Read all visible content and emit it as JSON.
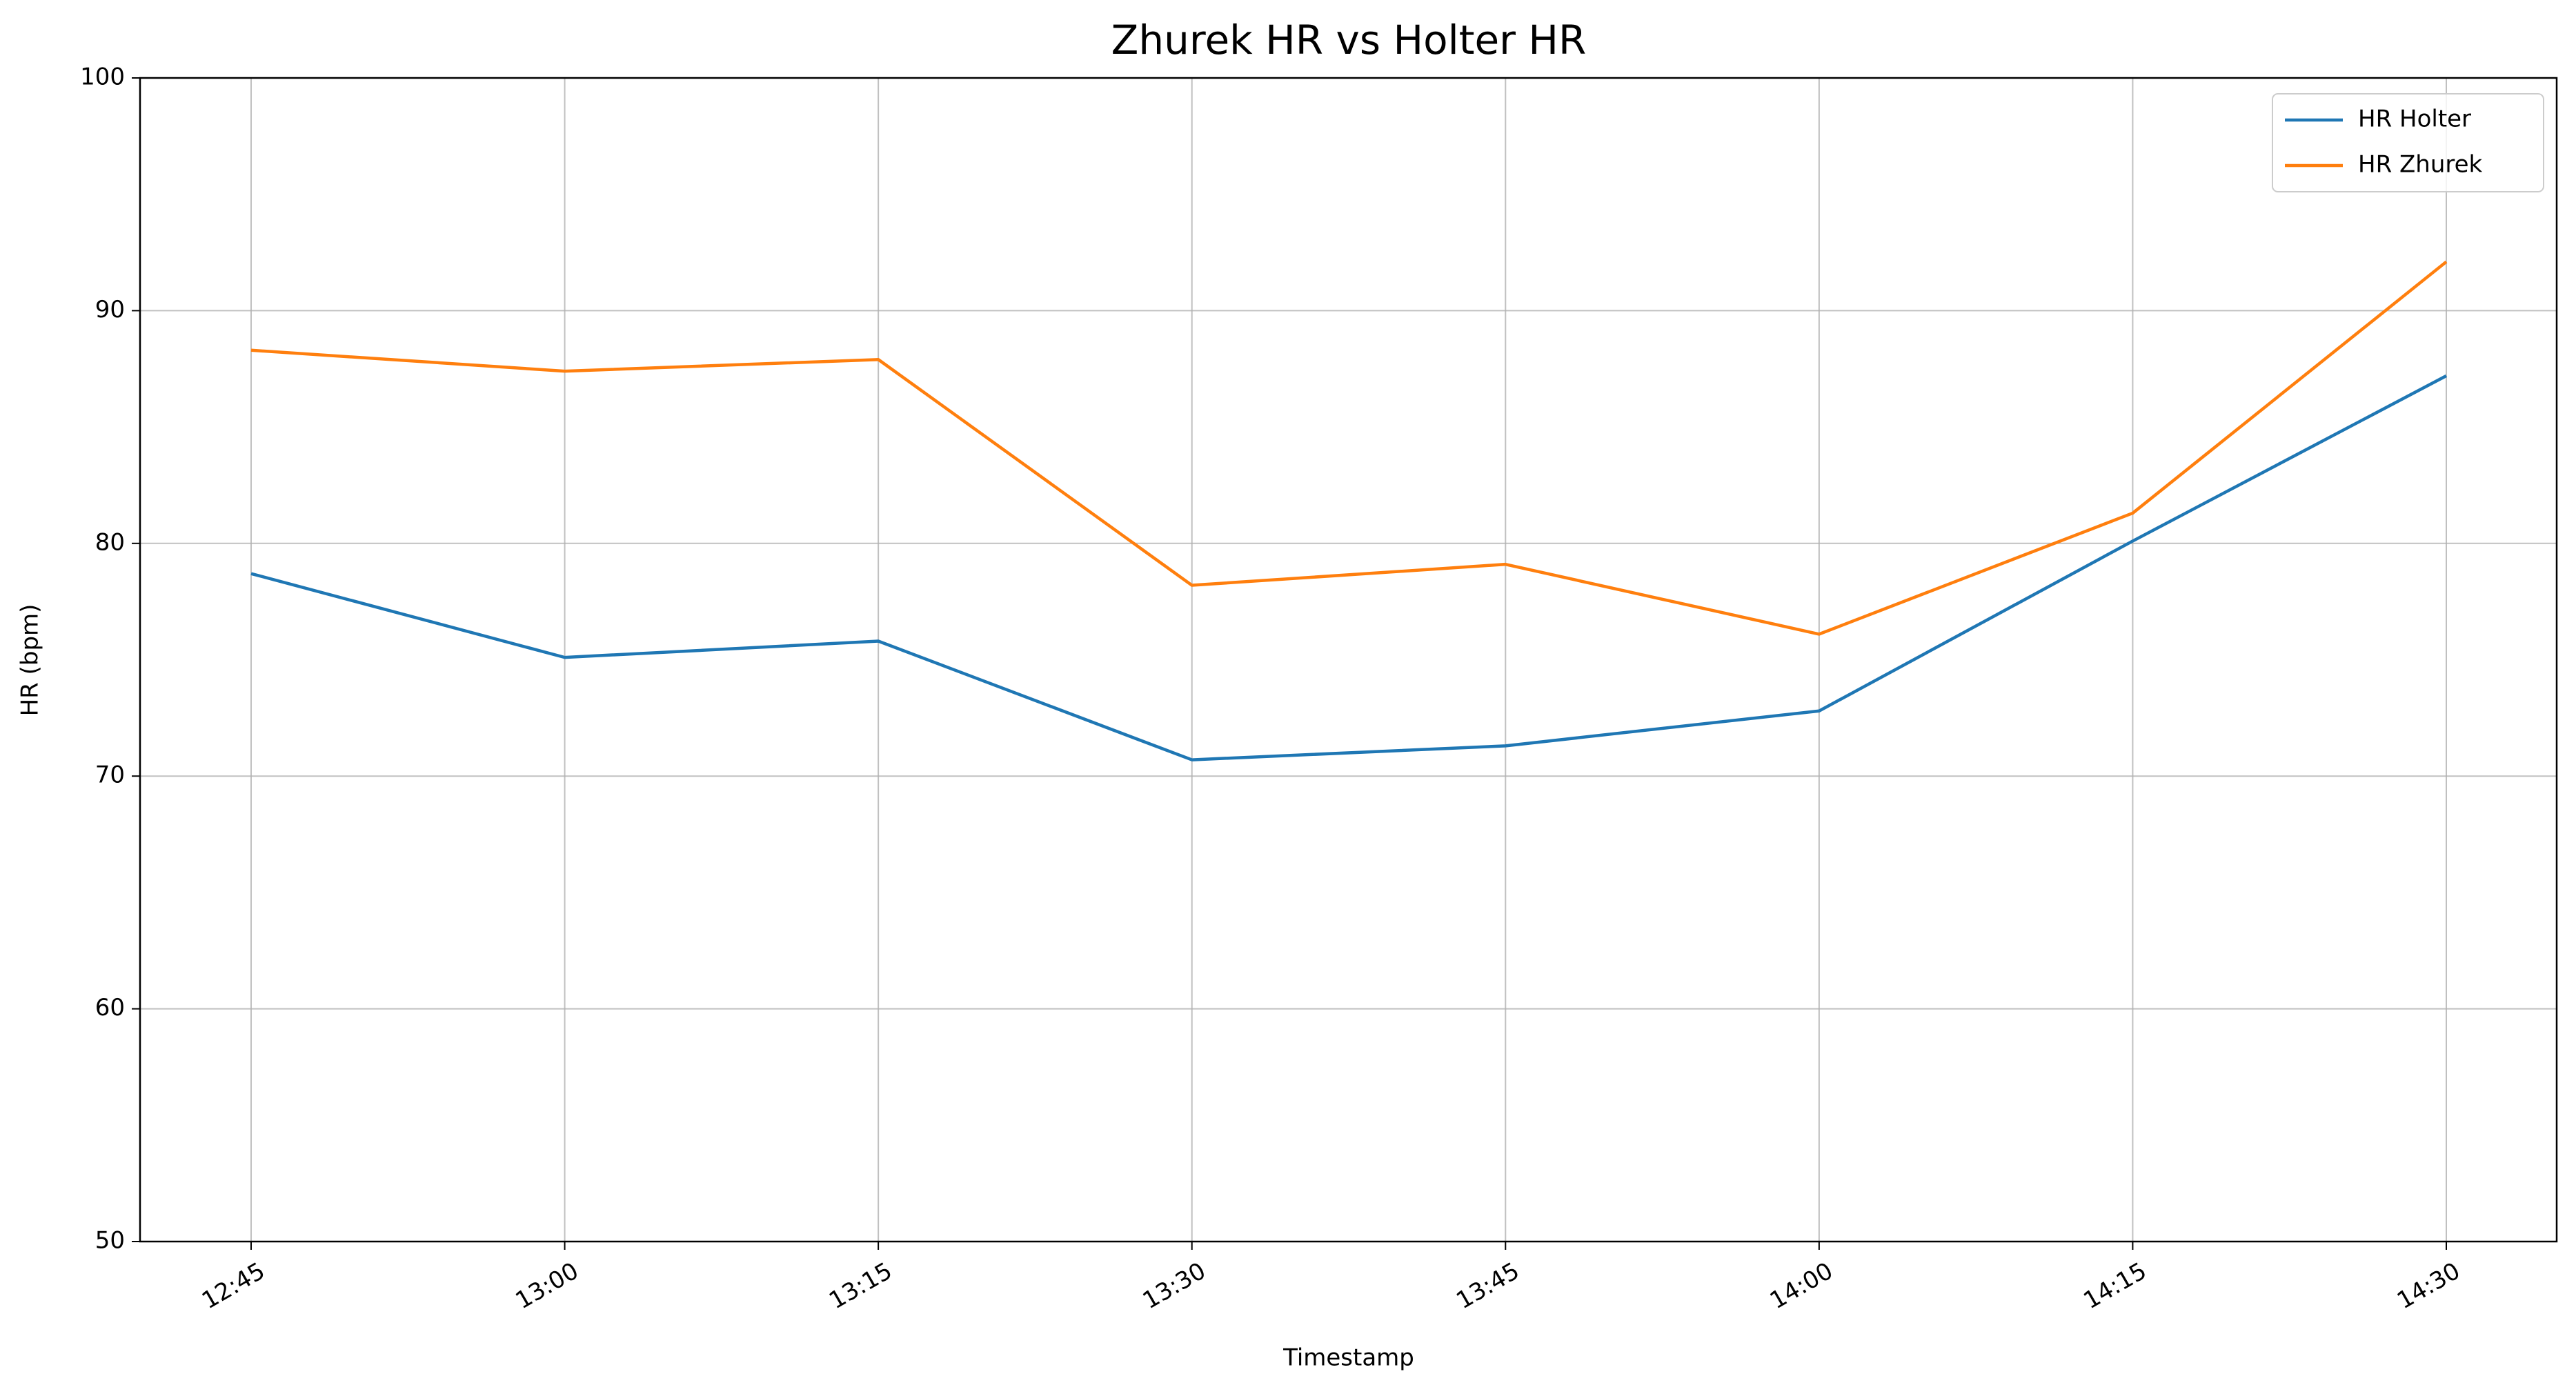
{
  "chart_data": {
    "type": "line",
    "title": "Zhurek HR vs Holter HR",
    "x_label": "Timestamp",
    "y_label": "HR (bpm)",
    "categories": [
      "12:45",
      "13:00",
      "13:15",
      "13:30",
      "13:45",
      "14:00",
      "14:15",
      "14:30"
    ],
    "series": [
      {
        "name": "HR Holter",
        "color": "#1f77b4",
        "values": [
          78.7,
          75.1,
          75.8,
          70.7,
          71.3,
          72.8,
          80.1,
          87.2
        ]
      },
      {
        "name": "HR Zhurek",
        "color": "#ff7f0e",
        "values": [
          88.3,
          87.4,
          87.9,
          78.2,
          79.1,
          76.1,
          81.3,
          92.1
        ]
      }
    ],
    "ylim": [
      50,
      100
    ],
    "yticks": [
      50,
      60,
      70,
      80,
      90,
      100
    ],
    "grid": true,
    "legend": "upper right"
  }
}
